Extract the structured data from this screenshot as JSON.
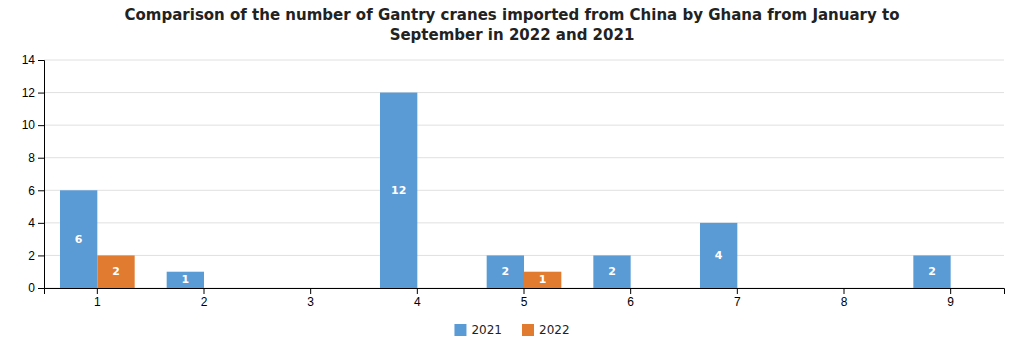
{
  "chart_data": {
    "type": "bar",
    "title": "Comparison of the number of Gantry cranes imported from China by Ghana from January to\nSeptember in 2022 and 2021",
    "categories": [
      "1",
      "2",
      "3",
      "4",
      "5",
      "6",
      "7",
      "8",
      "9"
    ],
    "series": [
      {
        "name": "2021",
        "color": "#5b9bd5",
        "values": [
          6,
          1,
          0,
          12,
          2,
          2,
          4,
          0,
          2
        ]
      },
      {
        "name": "2022",
        "color": "#e07b30",
        "values": [
          2,
          0,
          0,
          0,
          1,
          0,
          0,
          0,
          0
        ]
      }
    ],
    "ylim": [
      0,
      14
    ],
    "yticks": [
      0,
      2,
      4,
      6,
      8,
      10,
      12,
      14
    ],
    "grid": true,
    "legend": "bottom",
    "data_labels": true
  }
}
